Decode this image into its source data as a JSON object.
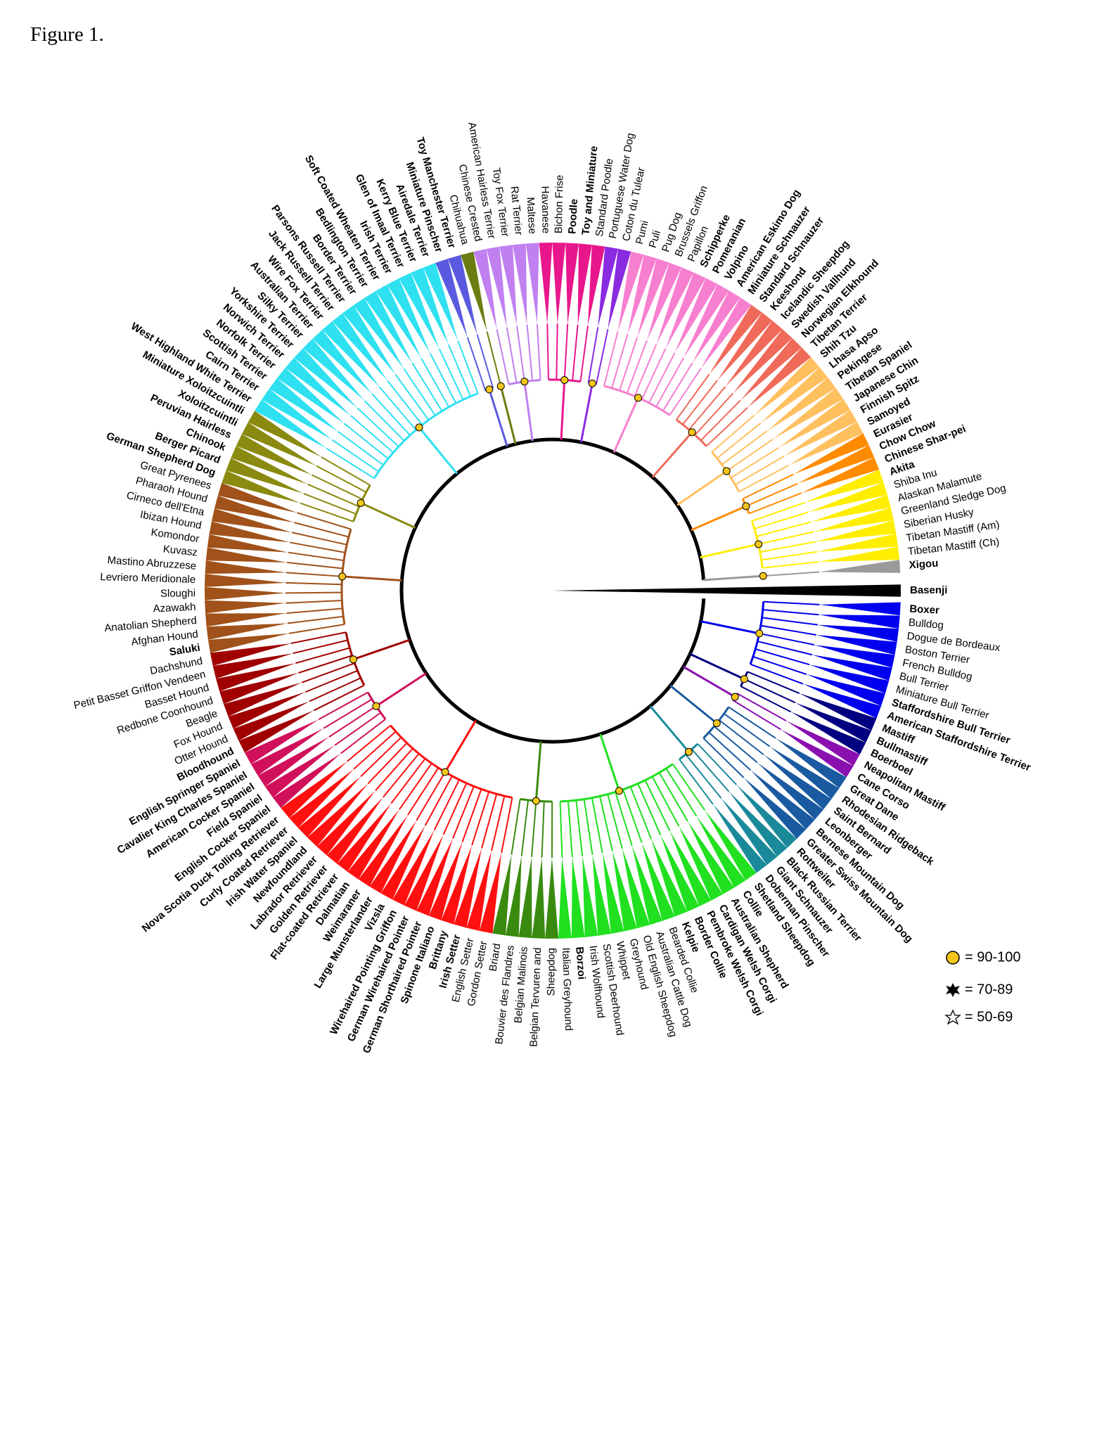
{
  "title": "Figure 1.",
  "tree": {
    "leaves": [
      {
        "name": "Xigou",
        "bold": true
      },
      {
        "name": "Tibetan Mastiff (Ch)"
      },
      {
        "name": "Tibetan Mastiff (Am)"
      },
      {
        "name": "Siberian Husky"
      },
      {
        "name": "Greenland Sledge Dog"
      },
      {
        "name": "Alaskan Malamute"
      },
      {
        "name": "Shiba Inu"
      },
      {
        "name": "Akita",
        "bold": true
      },
      {
        "name": "Chinese Shar-pei",
        "bold": true
      },
      {
        "name": "Chow Chow",
        "bold": true
      },
      {
        "name": "Eurasier",
        "bold": true
      },
      {
        "name": "Samoyed",
        "bold": true
      },
      {
        "name": "Finnish Spitz",
        "bold": true
      },
      {
        "name": "Japanese Chin",
        "bold": true
      },
      {
        "name": "Tibetan Spaniel",
        "bold": true
      },
      {
        "name": "Pekingese",
        "bold": true
      },
      {
        "name": "Lhasa Apso",
        "bold": true
      },
      {
        "name": "Shih Tzu",
        "bold": true
      },
      {
        "name": "Tibetan Terrier",
        "bold": true
      },
      {
        "name": "Norwegian Elkhound",
        "bold": true
      },
      {
        "name": "Swedish Vallhund",
        "bold": true
      },
      {
        "name": "Icelandic Sheepdog",
        "bold": true
      },
      {
        "name": "Keeshond",
        "bold": true
      },
      {
        "name": "Standard Schnauzer",
        "bold": true
      },
      {
        "name": "Miniature Schnauzer",
        "bold": true
      },
      {
        "name": "American Eskimo Dog",
        "bold": true
      },
      {
        "name": "Volpino",
        "bold": true
      },
      {
        "name": "Pomeranian",
        "bold": true
      },
      {
        "name": "Schipperke",
        "bold": true
      },
      {
        "name": "Papillon"
      },
      {
        "name": "Brussels Griffon"
      },
      {
        "name": "Pug Dog"
      },
      {
        "name": "Puli"
      },
      {
        "name": "Pumi"
      },
      {
        "name": "Coton du Tulear"
      },
      {
        "name": "Portuguese Water Dog"
      },
      {
        "name": "Standard Poodle"
      },
      {
        "name": "Toy and Miniature",
        "bold": true
      },
      {
        "name": "Poodle",
        "bold": true
      },
      {
        "name": "Bichon Frise"
      },
      {
        "name": "Havanese"
      },
      {
        "name": "Maltese"
      },
      {
        "name": "Rat Terrier"
      },
      {
        "name": "Toy Fox Terrier"
      },
      {
        "name": "American Hairless Terrier"
      },
      {
        "name": "Chinese Crested"
      },
      {
        "name": "Chihuahua"
      },
      {
        "name": "Toy Manchester Terrier",
        "bold": true
      },
      {
        "name": "Miniature Pinscher",
        "bold": true
      },
      {
        "name": "Airedale Terrier",
        "bold": true
      },
      {
        "name": "Kerry Blue Terrier",
        "bold": true
      },
      {
        "name": "Glen of Imaal Terrier",
        "bold": true
      },
      {
        "name": "Irish Terrier",
        "bold": true
      },
      {
        "name": "Soft Coated Wheaten Terrier",
        "bold": true
      },
      {
        "name": "Bedlington Terrier",
        "bold": true
      },
      {
        "name": "Border Terrier",
        "bold": true
      },
      {
        "name": "Parsons Russell Terrier",
        "bold": true
      },
      {
        "name": "Jack Russell Terrier",
        "bold": true
      },
      {
        "name": "Wire Fox Terrier",
        "bold": true
      },
      {
        "name": "Australian Terrier",
        "bold": true
      },
      {
        "name": "Silky Terrier",
        "bold": true
      },
      {
        "name": "Yorkshire Terrier",
        "bold": true
      },
      {
        "name": "Norwich Terrier",
        "bold": true
      },
      {
        "name": "Norfolk Terrier",
        "bold": true
      },
      {
        "name": "Scottish Terrier",
        "bold": true
      },
      {
        "name": "Cairn Terrier",
        "bold": true
      },
      {
        "name": "West Highland White Terrier",
        "bold": true
      },
      {
        "name": "Miniature Xoloitzcuintli",
        "bold": true
      },
      {
        "name": "Xoloitzcuintli",
        "bold": true
      },
      {
        "name": "Peruvian Hairless",
        "bold": true
      },
      {
        "name": "Chinook",
        "bold": true
      },
      {
        "name": "Berger Picard",
        "bold": true
      },
      {
        "name": "German Shepherd Dog",
        "bold": true
      },
      {
        "name": "Great Pyrenees"
      },
      {
        "name": "Pharaoh Hound"
      },
      {
        "name": "Cirneco dell'Etna"
      },
      {
        "name": "Ibizan Hound"
      },
      {
        "name": "Komondor"
      },
      {
        "name": "Kuvasz"
      },
      {
        "name": "Mastino Abruzzese"
      },
      {
        "name": "Levriero Meridionale"
      },
      {
        "name": "Sloughi"
      },
      {
        "name": "Azawakh"
      },
      {
        "name": "Anatolian Shepherd"
      },
      {
        "name": "Afghan Hound"
      },
      {
        "name": "Saluki",
        "bold": true
      },
      {
        "name": "Dachshund"
      },
      {
        "name": "Petit Basset Griffon Vendeen"
      },
      {
        "name": "Basset Hound"
      },
      {
        "name": "Redbone Coonhound"
      },
      {
        "name": "Beagle"
      },
      {
        "name": "Fox Hound"
      },
      {
        "name": "Otter Hound"
      },
      {
        "name": "Bloodhound",
        "bold": true
      },
      {
        "name": "English Springer Spaniel",
        "bold": true
      },
      {
        "name": "Cavalier King Charles Spaniel",
        "bold": true
      },
      {
        "name": "American Cocker Spaniel",
        "bold": true
      },
      {
        "name": "Field Spaniel",
        "bold": true
      },
      {
        "name": "English Cocker Spaniel",
        "bold": true
      },
      {
        "name": "Nova Scotia Duck Tolling Retriever",
        "bold": true
      },
      {
        "name": "Curly Coated Retriever",
        "bold": true
      },
      {
        "name": "Irish Water Spaniel",
        "bold": true
      },
      {
        "name": "Newfoundland",
        "bold": true
      },
      {
        "name": "Labrador Retriever",
        "bold": true
      },
      {
        "name": "Golden Retriever",
        "bold": true
      },
      {
        "name": "Flat-coated Retriever",
        "bold": true
      },
      {
        "name": "Dalmatian",
        "bold": true
      },
      {
        "name": "Weimaraner",
        "bold": true
      },
      {
        "name": "Large Munsterlander",
        "bold": true
      },
      {
        "name": "Vizsla",
        "bold": true
      },
      {
        "name": "Wirehaired Pointing Griffon",
        "bold": true
      },
      {
        "name": "German Wirehaired Pointer",
        "bold": true
      },
      {
        "name": "German Shorthaired Pointer",
        "bold": true
      },
      {
        "name": "Spinone Italiano",
        "bold": true
      },
      {
        "name": "Brittany",
        "bold": true
      },
      {
        "name": "Irish Setter",
        "bold": true
      },
      {
        "name": "English Setter"
      },
      {
        "name": "Gordon Setter"
      },
      {
        "name": "Briard"
      },
      {
        "name": "Bouvier des Flandres"
      },
      {
        "name": "Belgian Malinois"
      },
      {
        "name": "Belgian Tervuren and"
      },
      {
        "name": "Sheepdog"
      },
      {
        "name": "Italian Greyhound"
      },
      {
        "name": "Borzoi",
        "bold": true
      },
      {
        "name": "Irish Wolfhound"
      },
      {
        "name": "Scottish Deerhound"
      },
      {
        "name": "Whippet"
      },
      {
        "name": "Greyhound"
      },
      {
        "name": "Old English Sheepdog"
      },
      {
        "name": "Australian Cattle Dog"
      },
      {
        "name": "Bearded Collie"
      },
      {
        "name": "Kelpie",
        "bold": true
      },
      {
        "name": "Border Collie",
        "bold": true
      },
      {
        "name": "Pembroke Welsh Corgi",
        "bold": true
      },
      {
        "name": "Cardigan Welsh Corgi",
        "bold": true
      },
      {
        "name": "Australian Shepherd",
        "bold": true
      },
      {
        "name": "Collie",
        "bold": true
      },
      {
        "name": "Shetland Sheepdog",
        "bold": true
      },
      {
        "name": "Doberman Pinscher",
        "bold": true
      },
      {
        "name": "Giant Schnauzer",
        "bold": true
      },
      {
        "name": "Black Russian Terrier",
        "bold": true
      },
      {
        "name": "Rottweiler",
        "bold": true
      },
      {
        "name": "Greater Swiss Mountain Dog",
        "bold": true
      },
      {
        "name": "Bernese Mountain Dog",
        "bold": true
      },
      {
        "name": "Leonberger",
        "bold": true
      },
      {
        "name": "Saint Bernard",
        "bold": true
      },
      {
        "name": "Rhodesian Ridgeback",
        "bold": true
      },
      {
        "name": "Great Dane",
        "bold": true
      },
      {
        "name": "Cane Corso",
        "bold": true
      },
      {
        "name": "Neapolitan Mastiff",
        "bold": true
      },
      {
        "name": "Boerboel",
        "bold": true
      },
      {
        "name": "Bullmastiff",
        "bold": true
      },
      {
        "name": "Mastiff",
        "bold": true
      },
      {
        "name": "American Staffordshire Terrier",
        "bold": true
      },
      {
        "name": "Staffordshire Bull Terrier",
        "bold": true
      },
      {
        "name": "Miniature Bull Terrier"
      },
      {
        "name": "Bull Terrier"
      },
      {
        "name": "French Bulldog"
      },
      {
        "name": "Boston Terrier"
      },
      {
        "name": "Dogue de Bordeaux"
      },
      {
        "name": "Bulldog"
      },
      {
        "name": "Boxer",
        "bold": true
      },
      {
        "name": "Basenji",
        "bold": true
      }
    ]
  },
  "legend": [
    {
      "label": "= 90-100"
    },
    {
      "label": "= 70-89"
    },
    {
      "label": "= 50-69"
    }
  ]
}
